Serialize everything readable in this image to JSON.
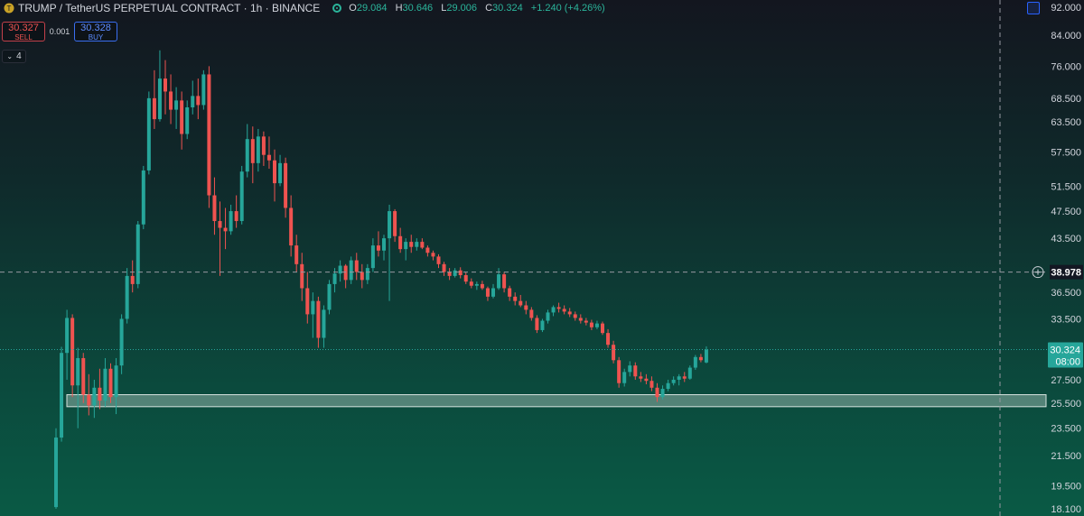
{
  "header": {
    "title": "TRUMP / TetherUS PERPETUAL CONTRACT · 1h · BINANCE",
    "ohlc": {
      "o_label": "O",
      "o": "29.084",
      "h_label": "H",
      "h": "30.646",
      "l_label": "L",
      "l": "29.006",
      "c_label": "C",
      "c": "30.324",
      "change": "+1.240 (+4.26%)"
    }
  },
  "trade": {
    "sell_price": "30.327",
    "sell_label": "SELL",
    "spread": "0.001",
    "buy_price": "30.328",
    "buy_label": "BUY"
  },
  "indicators": {
    "count": "4"
  },
  "colors": {
    "up": "#26a69a",
    "down": "#ef5350",
    "axis_text": "#d1d4dc",
    "current_price_bg": "#26a69a",
    "zone_fill": "#8fb0a6",
    "crosshair": "#9598a1"
  },
  "chart_data": {
    "type": "candlestick",
    "y_axis_ticks": [
      "92.000",
      "84.000",
      "76.000",
      "68.500",
      "63.500",
      "57.500",
      "51.500",
      "47.500",
      "43.500",
      "38.978",
      "36.500",
      "33.500",
      "30.324",
      "27.500",
      "25.500",
      "23.500",
      "21.500",
      "19.500",
      "18.100"
    ],
    "y_axis_tick_values": [
      92.0,
      84.0,
      76.0,
      68.5,
      63.5,
      57.5,
      51.5,
      47.5,
      43.5,
      36.5,
      33.5,
      27.5,
      25.5,
      23.5,
      21.5,
      19.5,
      18.1
    ],
    "ylim": [
      18.1,
      92.0
    ],
    "y_scale": "log",
    "crosshair_price": "38.978",
    "current_price": "30.324",
    "countdown": "08:00",
    "support_zone": [
      25.2,
      26.2
    ],
    "candles": [
      [
        18.2,
        23.5,
        18.1,
        22.8
      ],
      [
        22.8,
        30.6,
        22.5,
        30.0
      ],
      [
        30.0,
        34.5,
        27.5,
        33.6
      ],
      [
        33.6,
        34.0,
        26.0,
        27.0
      ],
      [
        27.0,
        30.5,
        23.5,
        29.5
      ],
      [
        29.5,
        30.0,
        25.5,
        26.2
      ],
      [
        26.2,
        28.0,
        24.5,
        25.3
      ],
      [
        25.3,
        27.5,
        24.3,
        26.8
      ],
      [
        26.8,
        28.5,
        25.0,
        25.7
      ],
      [
        25.7,
        29.5,
        25.2,
        28.5
      ],
      [
        28.5,
        29.0,
        25.5,
        26.0
      ],
      [
        26.0,
        29.5,
        24.6,
        28.8
      ],
      [
        28.8,
        34.0,
        28.0,
        33.5
      ],
      [
        33.5,
        39.5,
        33.0,
        38.5
      ],
      [
        38.5,
        40.5,
        36.5,
        37.5
      ],
      [
        37.5,
        46.0,
        37.0,
        45.5
      ],
      [
        45.5,
        55.0,
        44.8,
        54.2
      ],
      [
        54.2,
        70.0,
        53.5,
        68.5
      ],
      [
        68.5,
        75.0,
        62.0,
        64.0
      ],
      [
        64.0,
        80.0,
        63.5,
        73.0
      ],
      [
        73.0,
        77.5,
        65.0,
        70.0
      ],
      [
        70.0,
        74.0,
        63.0,
        66.0
      ],
      [
        66.0,
        71.0,
        62.0,
        68.0
      ],
      [
        68.0,
        70.0,
        58.0,
        61.0
      ],
      [
        61.0,
        68.0,
        60.0,
        66.5
      ],
      [
        66.5,
        72.5,
        65.0,
        69.0
      ],
      [
        69.0,
        73.0,
        64.0,
        67.0
      ],
      [
        67.0,
        75.0,
        66.0,
        74.0
      ],
      [
        74.0,
        76.0,
        48.0,
        50.0
      ],
      [
        50.0,
        53.0,
        44.0,
        46.0
      ],
      [
        46.0,
        49.0,
        38.5,
        45.0
      ],
      [
        45.0,
        48.0,
        42.0,
        44.5
      ],
      [
        44.5,
        48.5,
        44.0,
        47.5
      ],
      [
        47.5,
        50.0,
        45.0,
        46.0
      ],
      [
        46.0,
        55.0,
        45.5,
        54.0
      ],
      [
        54.0,
        63.0,
        53.0,
        60.0
      ],
      [
        60.0,
        62.5,
        52.0,
        55.5
      ],
      [
        55.5,
        62.0,
        54.0,
        60.5
      ],
      [
        60.5,
        61.5,
        55.0,
        57.0
      ],
      [
        57.0,
        60.5,
        54.5,
        56.0
      ],
      [
        56.0,
        58.0,
        49.0,
        52.0
      ],
      [
        52.0,
        57.0,
        51.5,
        55.5
      ],
      [
        55.5,
        56.5,
        46.5,
        48.0
      ],
      [
        48.0,
        50.0,
        41.0,
        42.5
      ],
      [
        42.5,
        44.0,
        39.0,
        40.0
      ],
      [
        40.0,
        41.5,
        35.5,
        37.0
      ],
      [
        37.0,
        39.0,
        33.0,
        34.0
      ],
      [
        34.0,
        36.5,
        31.5,
        35.5
      ],
      [
        35.5,
        36.0,
        30.5,
        31.5
      ],
      [
        31.5,
        35.0,
        30.5,
        34.5
      ],
      [
        34.5,
        38.0,
        34.0,
        37.5
      ],
      [
        37.5,
        39.5,
        36.5,
        38.8
      ],
      [
        38.8,
        40.5,
        37.8,
        39.8
      ],
      [
        39.8,
        40.0,
        37.0,
        38.0
      ],
      [
        38.0,
        41.0,
        37.5,
        40.5
      ],
      [
        40.5,
        41.5,
        38.0,
        39.0
      ],
      [
        39.0,
        40.0,
        37.0,
        38.0
      ],
      [
        38.0,
        40.0,
        37.5,
        39.5
      ],
      [
        39.5,
        43.5,
        39.0,
        42.5
      ],
      [
        42.5,
        44.5,
        41.0,
        41.8
      ],
      [
        41.8,
        44.0,
        40.5,
        43.5
      ],
      [
        43.5,
        48.5,
        35.5,
        47.5
      ],
      [
        47.5,
        47.8,
        43.0,
        43.8
      ],
      [
        43.8,
        45.0,
        41.5,
        42.0
      ],
      [
        42.0,
        43.5,
        40.5,
        43.0
      ],
      [
        43.0,
        44.0,
        41.5,
        42.3
      ],
      [
        42.3,
        43.5,
        41.8,
        43.0
      ],
      [
        43.0,
        43.5,
        42.0,
        42.2
      ],
      [
        42.2,
        42.5,
        41.0,
        41.5
      ],
      [
        41.5,
        41.8,
        40.5,
        41.0
      ],
      [
        41.0,
        41.3,
        39.5,
        40.0
      ],
      [
        40.0,
        40.3,
        38.5,
        39.0
      ],
      [
        39.0,
        39.5,
        38.0,
        38.5
      ],
      [
        38.5,
        39.5,
        38.3,
        39.2
      ],
      [
        39.2,
        39.6,
        38.2,
        38.6
      ],
      [
        38.6,
        39.0,
        37.5,
        37.8
      ],
      [
        37.8,
        38.2,
        37.0,
        37.3
      ],
      [
        37.3,
        37.8,
        36.8,
        37.5
      ],
      [
        37.5,
        37.9,
        36.8,
        37.0
      ],
      [
        37.0,
        37.2,
        35.5,
        36.0
      ],
      [
        36.0,
        37.5,
        35.8,
        37.0
      ],
      [
        37.0,
        39.5,
        36.8,
        38.7
      ],
      [
        38.7,
        39.0,
        36.5,
        37.0
      ],
      [
        37.0,
        37.3,
        35.5,
        36.0
      ],
      [
        36.0,
        36.5,
        35.0,
        35.5
      ],
      [
        35.5,
        36.2,
        34.8,
        35.0
      ],
      [
        35.0,
        35.5,
        34.0,
        34.5
      ],
      [
        34.5,
        34.8,
        33.3,
        33.6
      ],
      [
        33.6,
        33.9,
        32.0,
        32.3
      ],
      [
        32.3,
        33.5,
        32.1,
        33.3
      ],
      [
        33.3,
        34.5,
        33.0,
        34.2
      ],
      [
        34.2,
        35.0,
        33.8,
        34.8
      ],
      [
        34.8,
        35.3,
        34.2,
        34.6
      ],
      [
        34.6,
        35.0,
        34.0,
        34.3
      ],
      [
        34.3,
        34.7,
        33.7,
        34.0
      ],
      [
        34.0,
        34.3,
        33.3,
        33.6
      ],
      [
        33.6,
        34.0,
        33.0,
        33.3
      ],
      [
        33.3,
        33.6,
        32.8,
        33.1
      ],
      [
        33.1,
        33.4,
        32.3,
        32.6
      ],
      [
        32.6,
        33.3,
        32.4,
        33.0
      ],
      [
        33.0,
        33.2,
        31.8,
        32.0
      ],
      [
        32.0,
        32.4,
        30.5,
        30.8
      ],
      [
        30.8,
        31.2,
        29.0,
        29.3
      ],
      [
        29.3,
        29.6,
        26.8,
        27.2
      ],
      [
        27.2,
        28.5,
        26.9,
        28.2
      ],
      [
        28.2,
        29.2,
        27.8,
        28.8
      ],
      [
        28.8,
        29.1,
        27.5,
        27.8
      ],
      [
        27.8,
        28.2,
        27.3,
        27.6
      ],
      [
        27.6,
        28.0,
        27.1,
        27.4
      ],
      [
        27.4,
        27.8,
        26.5,
        26.8
      ],
      [
        26.8,
        27.2,
        25.6,
        26.0
      ],
      [
        26.0,
        27.0,
        25.8,
        26.7
      ],
      [
        26.7,
        27.5,
        26.5,
        27.2
      ],
      [
        27.2,
        27.8,
        27.0,
        27.5
      ],
      [
        27.5,
        28.0,
        27.0,
        27.8
      ],
      [
        27.8,
        28.2,
        27.3,
        27.6
      ],
      [
        27.6,
        28.8,
        27.5,
        28.6
      ],
      [
        28.6,
        29.8,
        28.4,
        29.6
      ],
      [
        29.6,
        29.9,
        29.1,
        29.3
      ],
      [
        29.084,
        30.646,
        29.006,
        30.324
      ]
    ]
  }
}
